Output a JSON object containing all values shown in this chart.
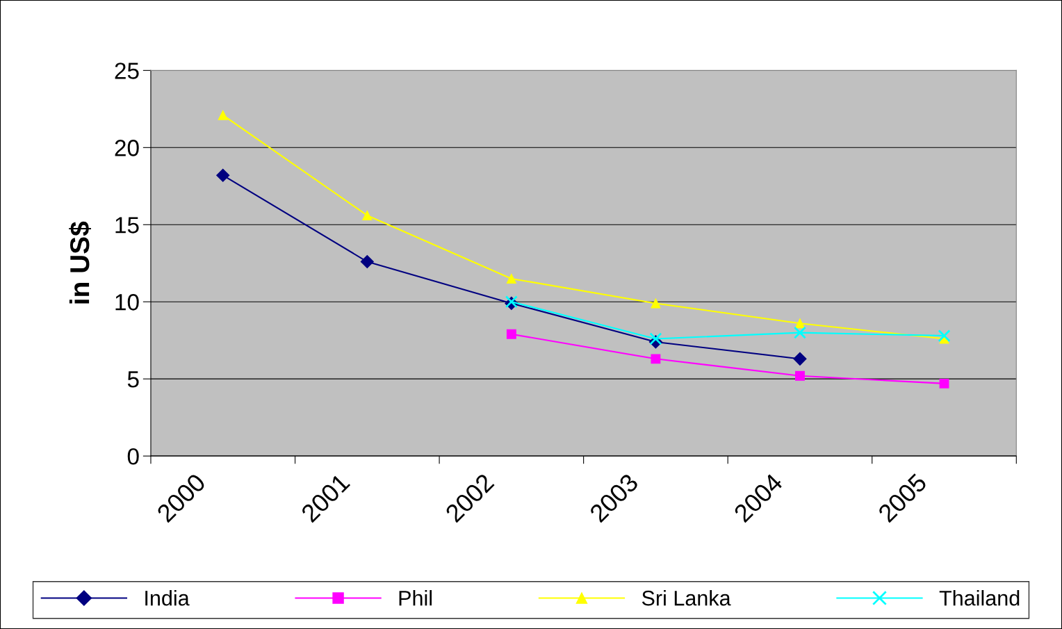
{
  "chart_data": {
    "type": "line",
    "ylabel": "in US$",
    "categories": [
      "2000",
      "2001",
      "2002",
      "2003",
      "2004",
      "2005"
    ],
    "ylim": [
      0,
      25
    ],
    "yticks": [
      0,
      5,
      10,
      15,
      20,
      25
    ],
    "grid": "y",
    "legend": "bottom",
    "line_style": "solid",
    "series": [
      {
        "name": "India",
        "color": "#000080",
        "marker": "diamond",
        "values": [
          18.2,
          12.6,
          9.9,
          7.4,
          6.3,
          null
        ]
      },
      {
        "name": "Phil",
        "color": "#ff00ff",
        "marker": "square",
        "values": [
          null,
          null,
          7.9,
          6.3,
          5.2,
          4.7
        ]
      },
      {
        "name": "Sri Lanka",
        "color": "#ffff00",
        "marker": "triangle",
        "values": [
          22.1,
          15.6,
          11.5,
          9.9,
          8.6,
          7.6
        ]
      },
      {
        "name": "Thailand",
        "color": "#00ffff",
        "marker": "cross",
        "values": [
          null,
          null,
          10.0,
          7.6,
          8.0,
          7.8
        ]
      }
    ]
  }
}
